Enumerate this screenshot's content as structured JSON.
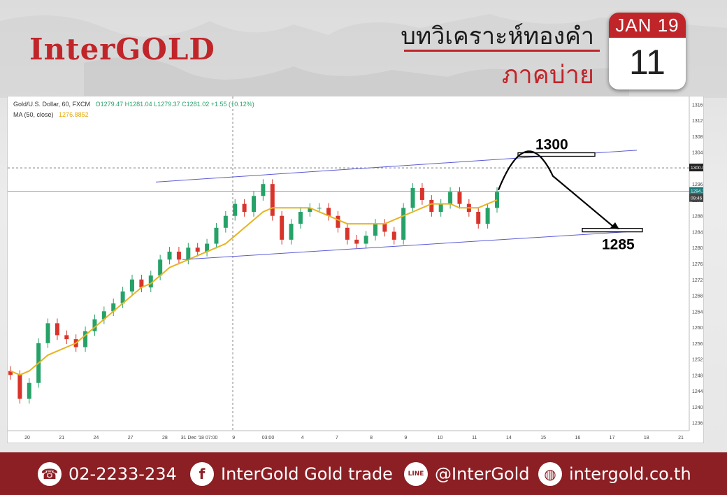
{
  "header": {
    "logo": "InterGOLD",
    "title_th": "บทวิเคราะห์ทองคำ",
    "subtitle_th": "ภาคบ่าย",
    "calendar_month": "JAN 19",
    "calendar_day": "11"
  },
  "chart_data": {
    "type": "candlestick",
    "instrument": "Gold/U.S. Dollar, 60, FXCM",
    "ohlc_label": "O1279.47 H1281.04 L1279.37 C1281.02 +1.55 (+0.12%)",
    "ma_label": "MA (50, close)",
    "ma_value": "1276.8852",
    "x_ticks": [
      "20",
      "21",
      "24",
      "27",
      "28",
      "31 Dec '18 07:00",
      "9",
      "03:00",
      "4",
      "7",
      "8",
      "9",
      "10",
      "11",
      "14",
      "15",
      "16",
      "17",
      "18",
      "21"
    ],
    "y_ticks": [
      1316,
      1312,
      1308,
      1304,
      1300,
      1296,
      1292,
      1288,
      1284,
      1280,
      1276,
      1272,
      1268,
      1264,
      1260,
      1256,
      1252,
      1248,
      1244,
      1240,
      1236
    ],
    "ylim": [
      1234,
      1318
    ],
    "price_labels": [
      "1300.06",
      "1294.16",
      "09:46"
    ],
    "annotations": {
      "resistance": "1300",
      "support": "1285"
    },
    "close_path": [
      1248,
      1242,
      1246,
      1256,
      1261,
      1258,
      1257,
      1255,
      1259,
      1262,
      1264,
      1266,
      1269,
      1272,
      1270,
      1273,
      1277,
      1279,
      1277,
      1280,
      1279,
      1281,
      1285,
      1288,
      1291,
      1289,
      1293,
      1296,
      1288,
      1282,
      1286,
      1289,
      1290,
      1290,
      1288,
      1285,
      1282,
      1281,
      1283,
      1286,
      1284,
      1282,
      1290,
      1295,
      1292,
      1289,
      1291,
      1294,
      1291,
      1289,
      1286,
      1290,
      1294
    ],
    "ma_path": [
      1249,
      1248,
      1249,
      1251,
      1253,
      1254,
      1255,
      1256,
      1258,
      1260,
      1262,
      1264,
      1266,
      1268,
      1270,
      1271,
      1273,
      1275,
      1276,
      1277,
      1278,
      1279,
      1280,
      1281,
      1283,
      1285,
      1287,
      1289,
      1290,
      1290,
      1290,
      1290,
      1290,
      1289,
      1288,
      1287,
      1286,
      1286,
      1286,
      1286,
      1286,
      1287,
      1288,
      1289,
      1290,
      1291,
      1291,
      1291,
      1290,
      1290,
      1290,
      1291,
      1292
    ],
    "colors": {
      "up": "#26a269",
      "down": "#d9342b",
      "ma": "#e6b422",
      "channel": "#5a5ad8",
      "arrow": "#000000"
    }
  },
  "footer": {
    "phone": "02-2233-234",
    "facebook": "InterGold Gold trade",
    "line": "@InterGold",
    "website": "intergold.co.th",
    "icon_phone": "phone-icon",
    "icon_facebook": "facebook-icon",
    "icon_line": "line-icon",
    "icon_web": "globe-icon"
  }
}
